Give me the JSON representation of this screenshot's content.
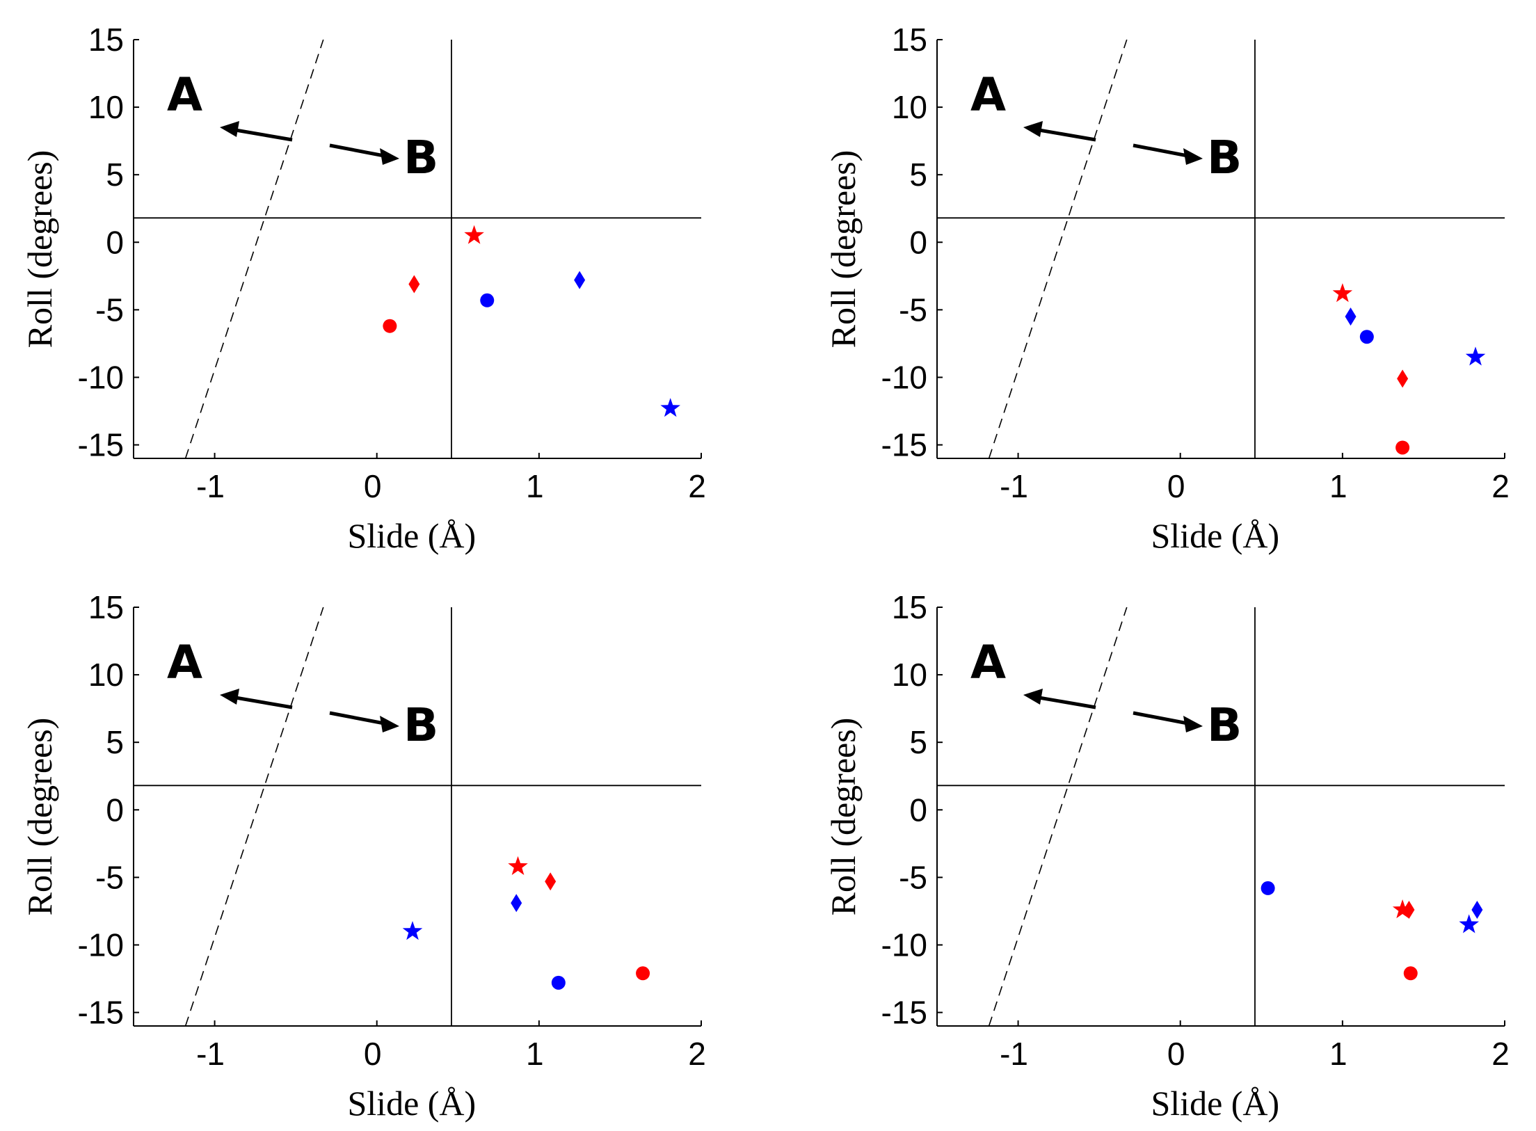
{
  "colors": {
    "red": "#ff0000",
    "blue": "#0000ff",
    "axis": "#000000"
  },
  "chart_data": [
    {
      "type": "scatter",
      "xlabel": "Slide (Å)",
      "ylabel": "Roll (degrees)",
      "xlim": [
        -1.5,
        2
      ],
      "ylim": [
        -16,
        15
      ],
      "xticks": [
        "-1",
        "0",
        "1",
        "2"
      ],
      "yticks": [
        "15",
        "10",
        "5",
        "0",
        "-5",
        "-10",
        "-15"
      ],
      "reference_lines": {
        "vertical_x": 0.46,
        "horizontal_y": 1.8,
        "dashed_from": [
          -1.18,
          -16
        ],
        "dashed_to": [
          -0.33,
          15
        ]
      },
      "annotations": [
        "A",
        "B"
      ],
      "series": [
        {
          "name": "red-star",
          "color": "red",
          "marker": "star",
          "x": 0.6,
          "y": 0.5
        },
        {
          "name": "red-diamond",
          "color": "red",
          "marker": "diamond",
          "x": 0.23,
          "y": -3.1
        },
        {
          "name": "red-circle",
          "color": "red",
          "marker": "circle",
          "x": 0.08,
          "y": -6.2
        },
        {
          "name": "blue-circle",
          "color": "blue",
          "marker": "circle",
          "x": 0.68,
          "y": -4.3
        },
        {
          "name": "blue-diamond",
          "color": "blue",
          "marker": "diamond",
          "x": 1.25,
          "y": -2.8
        },
        {
          "name": "blue-star",
          "color": "blue",
          "marker": "star",
          "x": 1.81,
          "y": -12.3
        }
      ]
    },
    {
      "type": "scatter",
      "xlabel": "Slide (Å)",
      "ylabel": "Roll (degrees)",
      "xlim": [
        -1.5,
        2
      ],
      "ylim": [
        -16,
        15
      ],
      "xticks": [
        "-1",
        "0",
        "1",
        "2"
      ],
      "yticks": [
        "15",
        "10",
        "5",
        "0",
        "-5",
        "-10",
        "-15"
      ],
      "reference_lines": {
        "vertical_x": 0.46,
        "horizontal_y": 1.8,
        "dashed_from": [
          -1.18,
          -16
        ],
        "dashed_to": [
          -0.33,
          15
        ]
      },
      "annotations": [
        "A",
        "B"
      ],
      "series": [
        {
          "name": "red-star",
          "color": "red",
          "marker": "star",
          "x": 1.0,
          "y": -3.8
        },
        {
          "name": "blue-diamond",
          "color": "blue",
          "marker": "diamond",
          "x": 1.05,
          "y": -5.5
        },
        {
          "name": "blue-circle",
          "color": "blue",
          "marker": "circle",
          "x": 1.15,
          "y": -7.0
        },
        {
          "name": "red-diamond",
          "color": "red",
          "marker": "diamond",
          "x": 1.37,
          "y": -10.1
        },
        {
          "name": "red-circle",
          "color": "red",
          "marker": "circle",
          "x": 1.37,
          "y": -15.2
        },
        {
          "name": "blue-star",
          "color": "blue",
          "marker": "star",
          "x": 1.82,
          "y": -8.5
        }
      ]
    },
    {
      "type": "scatter",
      "xlabel": "Slide (Å)",
      "ylabel": "Roll (degrees)",
      "xlim": [
        -1.5,
        2
      ],
      "ylim": [
        -16,
        15
      ],
      "xticks": [
        "-1",
        "0",
        "1",
        "2"
      ],
      "yticks": [
        "15",
        "10",
        "5",
        "0",
        "-5",
        "-10",
        "-15"
      ],
      "reference_lines": {
        "vertical_x": 0.46,
        "horizontal_y": 1.8,
        "dashed_from": [
          -1.18,
          -16
        ],
        "dashed_to": [
          -0.33,
          15
        ]
      },
      "annotations": [
        "A",
        "B"
      ],
      "series": [
        {
          "name": "red-star",
          "color": "red",
          "marker": "star",
          "x": 0.87,
          "y": -4.2
        },
        {
          "name": "red-diamond",
          "color": "red",
          "marker": "diamond",
          "x": 1.07,
          "y": -5.3
        },
        {
          "name": "blue-diamond",
          "color": "blue",
          "marker": "diamond",
          "x": 0.86,
          "y": -6.9
        },
        {
          "name": "blue-star",
          "color": "blue",
          "marker": "star",
          "x": 0.22,
          "y": -9.0
        },
        {
          "name": "blue-circle",
          "color": "blue",
          "marker": "circle",
          "x": 1.12,
          "y": -12.8
        },
        {
          "name": "red-circle",
          "color": "red",
          "marker": "circle",
          "x": 1.64,
          "y": -12.1
        }
      ]
    },
    {
      "type": "scatter",
      "xlabel": "Slide (Å)",
      "ylabel": "Roll (degrees)",
      "xlim": [
        -1.5,
        2
      ],
      "ylim": [
        -16,
        15
      ],
      "xticks": [
        "-1",
        "0",
        "1",
        "2"
      ],
      "yticks": [
        "15",
        "10",
        "5",
        "0",
        "-5",
        "-10",
        "-15"
      ],
      "reference_lines": {
        "vertical_x": 0.46,
        "horizontal_y": 1.8,
        "dashed_from": [
          -1.18,
          -16
        ],
        "dashed_to": [
          -0.33,
          15
        ]
      },
      "annotations": [
        "A",
        "B"
      ],
      "series": [
        {
          "name": "blue-circle",
          "color": "blue",
          "marker": "circle",
          "x": 0.54,
          "y": -5.8
        },
        {
          "name": "red-star",
          "color": "red",
          "marker": "star",
          "x": 1.37,
          "y": -7.4
        },
        {
          "name": "red-diamond",
          "color": "red",
          "marker": "diamond",
          "x": 1.41,
          "y": -7.4
        },
        {
          "name": "red-circle",
          "color": "red",
          "marker": "circle",
          "x": 1.42,
          "y": -12.1
        },
        {
          "name": "blue-diamond",
          "color": "blue",
          "marker": "diamond",
          "x": 1.83,
          "y": -7.4
        },
        {
          "name": "blue-star",
          "color": "blue",
          "marker": "star",
          "x": 1.78,
          "y": -8.5
        }
      ]
    }
  ]
}
